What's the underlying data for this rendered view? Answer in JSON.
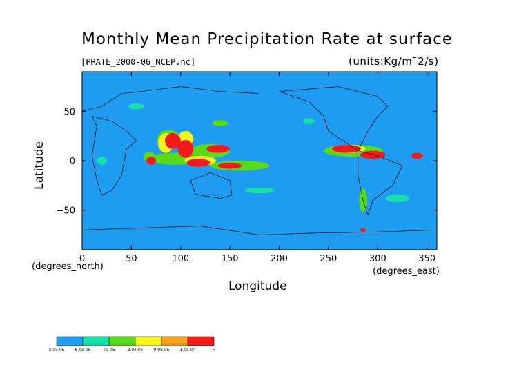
{
  "chart_data": {
    "type": "heatmap",
    "title": "Monthly Mean Precipitation Rate at surface",
    "file_label": "[PRATE_2000-06_NCEP.nc]",
    "units_label": "(units:Kg/m¯2/s)",
    "xlabel": "Longitude",
    "ylabel": "Latitude",
    "x_unit_label": "(degrees_east)",
    "y_unit_label": "(degrees_north)",
    "xlim": [
      0,
      360
    ],
    "ylim": [
      -90,
      90
    ],
    "x_ticks": [
      0,
      50,
      100,
      150,
      200,
      250,
      300,
      350
    ],
    "y_ticks": [
      -50,
      0,
      50
    ],
    "colorbar": {
      "labels": [
        "5.0e-05",
        "6.0e-05",
        "7e-05",
        "8.0e-05",
        "9.0e-05",
        "1.0e-04",
        "∞"
      ],
      "colors": [
        "#1e9cf2",
        "#18e0aa",
        "#58dc18",
        "#f4f41a",
        "#f5a01a",
        "#f21a1a"
      ]
    },
    "regions": [
      {
        "level": 2,
        "lon": 68,
        "lat": 4,
        "rx": 6,
        "ry": 5
      },
      {
        "level": 2,
        "lon": 95,
        "lat": 2,
        "rx": 28,
        "ry": 6
      },
      {
        "level": 2,
        "lon": 130,
        "lat": 10,
        "rx": 20,
        "ry": 7
      },
      {
        "level": 2,
        "lon": 160,
        "lat": -5,
        "rx": 30,
        "ry": 5
      },
      {
        "level": 2,
        "lon": 275,
        "lat": 10,
        "rx": 30,
        "ry": 6
      },
      {
        "level": 2,
        "lon": 88,
        "lat": 22,
        "rx": 12,
        "ry": 9
      },
      {
        "level": 2,
        "lon": 140,
        "lat": 38,
        "rx": 8,
        "ry": 3
      },
      {
        "level": 2,
        "lon": 285,
        "lat": -40,
        "rx": 4,
        "ry": 12
      },
      {
        "level": 3,
        "lon": 85,
        "lat": 18,
        "rx": 8,
        "ry": 10
      },
      {
        "level": 3,
        "lon": 105,
        "lat": 22,
        "rx": 8,
        "ry": 8
      },
      {
        "level": 3,
        "lon": 270,
        "lat": 12,
        "rx": 18,
        "ry": 4
      },
      {
        "level": 3,
        "lon": 120,
        "lat": 0,
        "rx": 16,
        "ry": 5
      },
      {
        "level": 5,
        "lon": 70,
        "lat": 0,
        "rx": 5,
        "ry": 4
      },
      {
        "level": 5,
        "lon": 92,
        "lat": 20,
        "rx": 8,
        "ry": 8
      },
      {
        "level": 5,
        "lon": 105,
        "lat": 12,
        "rx": 8,
        "ry": 9
      },
      {
        "level": 5,
        "lon": 118,
        "lat": -2,
        "rx": 12,
        "ry": 4
      },
      {
        "level": 5,
        "lon": 138,
        "lat": 12,
        "rx": 12,
        "ry": 4
      },
      {
        "level": 5,
        "lon": 150,
        "lat": -5,
        "rx": 12,
        "ry": 3
      },
      {
        "level": 5,
        "lon": 268,
        "lat": 12,
        "rx": 15,
        "ry": 4
      },
      {
        "level": 5,
        "lon": 295,
        "lat": 6,
        "rx": 13,
        "ry": 4
      },
      {
        "level": 5,
        "lon": 340,
        "lat": 5,
        "rx": 6,
        "ry": 3
      },
      {
        "level": 5,
        "lon": 285,
        "lat": -70,
        "rx": 3,
        "ry": 2
      },
      {
        "level": 1,
        "lon": 55,
        "lat": 55,
        "rx": 8,
        "ry": 3
      },
      {
        "level": 1,
        "lon": 230,
        "lat": 40,
        "rx": 6,
        "ry": 3
      },
      {
        "level": 1,
        "lon": 320,
        "lat": -38,
        "rx": 12,
        "ry": 4
      },
      {
        "level": 1,
        "lon": 180,
        "lat": -30,
        "rx": 15,
        "ry": 3
      },
      {
        "level": 1,
        "lon": 20,
        "lat": 0,
        "rx": 5,
        "ry": 4
      }
    ]
  }
}
